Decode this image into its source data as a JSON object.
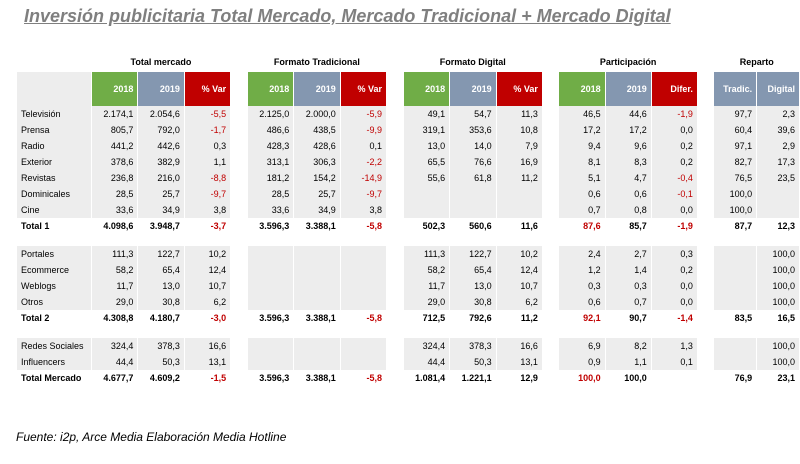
{
  "title": "Inversión publicitaria Total Mercado, Mercado Tradicional + Mercado Digital",
  "footer": "Fuente: i2p, Arce Media Elaboración Media Hotline",
  "groups": [
    "Total mercado",
    "Formato Tradicional",
    "Formato Digital",
    "Participación",
    "Reparto"
  ],
  "subheaders": {
    "total": [
      "2018",
      "2019",
      "% Var"
    ],
    "trad": [
      "2018",
      "2019",
      "% Var"
    ],
    "digital": [
      "2018",
      "2019",
      "% Var"
    ],
    "part": [
      "2018",
      "2019",
      "Difer."
    ],
    "reparto": [
      "Tradic.",
      "Digital"
    ]
  },
  "colors": {
    "y2018": "#70ad47",
    "y2019": "#8497b0",
    "var": "#c00000",
    "shade": "#ededed"
  },
  "sections": [
    {
      "rows": [
        {
          "name": "Televisión",
          "c": [
            "2.174,1",
            "2.054,6",
            "-5,5",
            "2.125,0",
            "2.000,0",
            "-5,9",
            "49,1",
            "54,7",
            "11,3",
            "46,5",
            "44,6",
            "-1,9",
            "97,7",
            "2,3"
          ]
        },
        {
          "name": "Prensa",
          "c": [
            "805,7",
            "792,0",
            "-1,7",
            "486,6",
            "438,5",
            "-9,9",
            "319,1",
            "353,6",
            "10,8",
            "17,2",
            "17,2",
            "0,0",
            "60,4",
            "39,6"
          ]
        },
        {
          "name": "Radio",
          "c": [
            "441,2",
            "442,6",
            "0,3",
            "428,3",
            "428,6",
            "0,1",
            "13,0",
            "14,0",
            "7,9",
            "9,4",
            "9,6",
            "0,2",
            "97,1",
            "2,9"
          ]
        },
        {
          "name": "Exterior",
          "c": [
            "378,6",
            "382,9",
            "1,1",
            "313,1",
            "306,3",
            "-2,2",
            "65,5",
            "76,6",
            "16,9",
            "8,1",
            "8,3",
            "0,2",
            "82,7",
            "17,3"
          ]
        },
        {
          "name": "Revistas",
          "c": [
            "236,8",
            "216,0",
            "-8,8",
            "181,2",
            "154,2",
            "-14,9",
            "55,6",
            "61,8",
            "11,2",
            "5,1",
            "4,7",
            "-0,4",
            "76,5",
            "23,5"
          ]
        },
        {
          "name": "Dominicales",
          "c": [
            "28,5",
            "25,7",
            "-9,7",
            "28,5",
            "25,7",
            "-9,7",
            "",
            "",
            "",
            "0,6",
            "0,6",
            "-0,1",
            "100,0",
            ""
          ]
        },
        {
          "name": "Cine",
          "c": [
            "33,6",
            "34,9",
            "3,8",
            "33,6",
            "34,9",
            "3,8",
            "",
            "",
            "",
            "0,7",
            "0,8",
            "0,0",
            "100,0",
            ""
          ]
        }
      ],
      "total": {
        "name": "Total 1",
        "c": [
          "4.098,6",
          "3.948,7",
          "-3,7",
          "3.596,3",
          "3.388,1",
          "-5,8",
          "502,3",
          "560,6",
          "11,6",
          "87,6",
          "85,7",
          "-1,9",
          "87,7",
          "12,3"
        ]
      }
    },
    {
      "rows": [
        {
          "name": "Portales",
          "c": [
            "111,3",
            "122,7",
            "10,2",
            "",
            "",
            "",
            "111,3",
            "122,7",
            "10,2",
            "2,4",
            "2,7",
            "0,3",
            "",
            "100,0"
          ]
        },
        {
          "name": "Ecommerce",
          "c": [
            "58,2",
            "65,4",
            "12,4",
            "",
            "",
            "",
            "58,2",
            "65,4",
            "12,4",
            "1,2",
            "1,4",
            "0,2",
            "",
            "100,0"
          ]
        },
        {
          "name": "Weblogs",
          "c": [
            "11,7",
            "13,0",
            "10,7",
            "",
            "",
            "",
            "11,7",
            "13,0",
            "10,7",
            "0,3",
            "0,3",
            "0,0",
            "",
            "100,0"
          ]
        },
        {
          "name": "Otros",
          "c": [
            "29,0",
            "30,8",
            "6,2",
            "",
            "",
            "",
            "29,0",
            "30,8",
            "6,2",
            "0,6",
            "0,7",
            "0,0",
            "",
            "100,0"
          ]
        }
      ],
      "total": {
        "name": "Total 2",
        "c": [
          "4.308,8",
          "4.180,7",
          "-3,0",
          "3.596,3",
          "3.388,1",
          "-5,8",
          "712,5",
          "792,6",
          "11,2",
          "92,1",
          "90,7",
          "-1,4",
          "83,5",
          "16,5"
        ]
      }
    },
    {
      "rows": [
        {
          "name": "Redes Sociales",
          "c": [
            "324,4",
            "378,3",
            "16,6",
            "",
            "",
            "",
            "324,4",
            "378,3",
            "16,6",
            "6,9",
            "8,2",
            "1,3",
            "",
            "100,0"
          ]
        },
        {
          "name": "Influencers",
          "c": [
            "44,4",
            "50,3",
            "13,1",
            "",
            "",
            "",
            "44,4",
            "50,3",
            "13,1",
            "0,9",
            "1,1",
            "0,1",
            "",
            "100,0"
          ]
        }
      ],
      "total": {
        "name": "Total Mercado",
        "c": [
          "4.677,7",
          "4.609,2",
          "-1,5",
          "3.596,3",
          "3.388,1",
          "-5,8",
          "1.081,4",
          "1.221,1",
          "12,9",
          "100,0",
          "100,0",
          "",
          "76,9",
          "23,1"
        ]
      }
    }
  ]
}
